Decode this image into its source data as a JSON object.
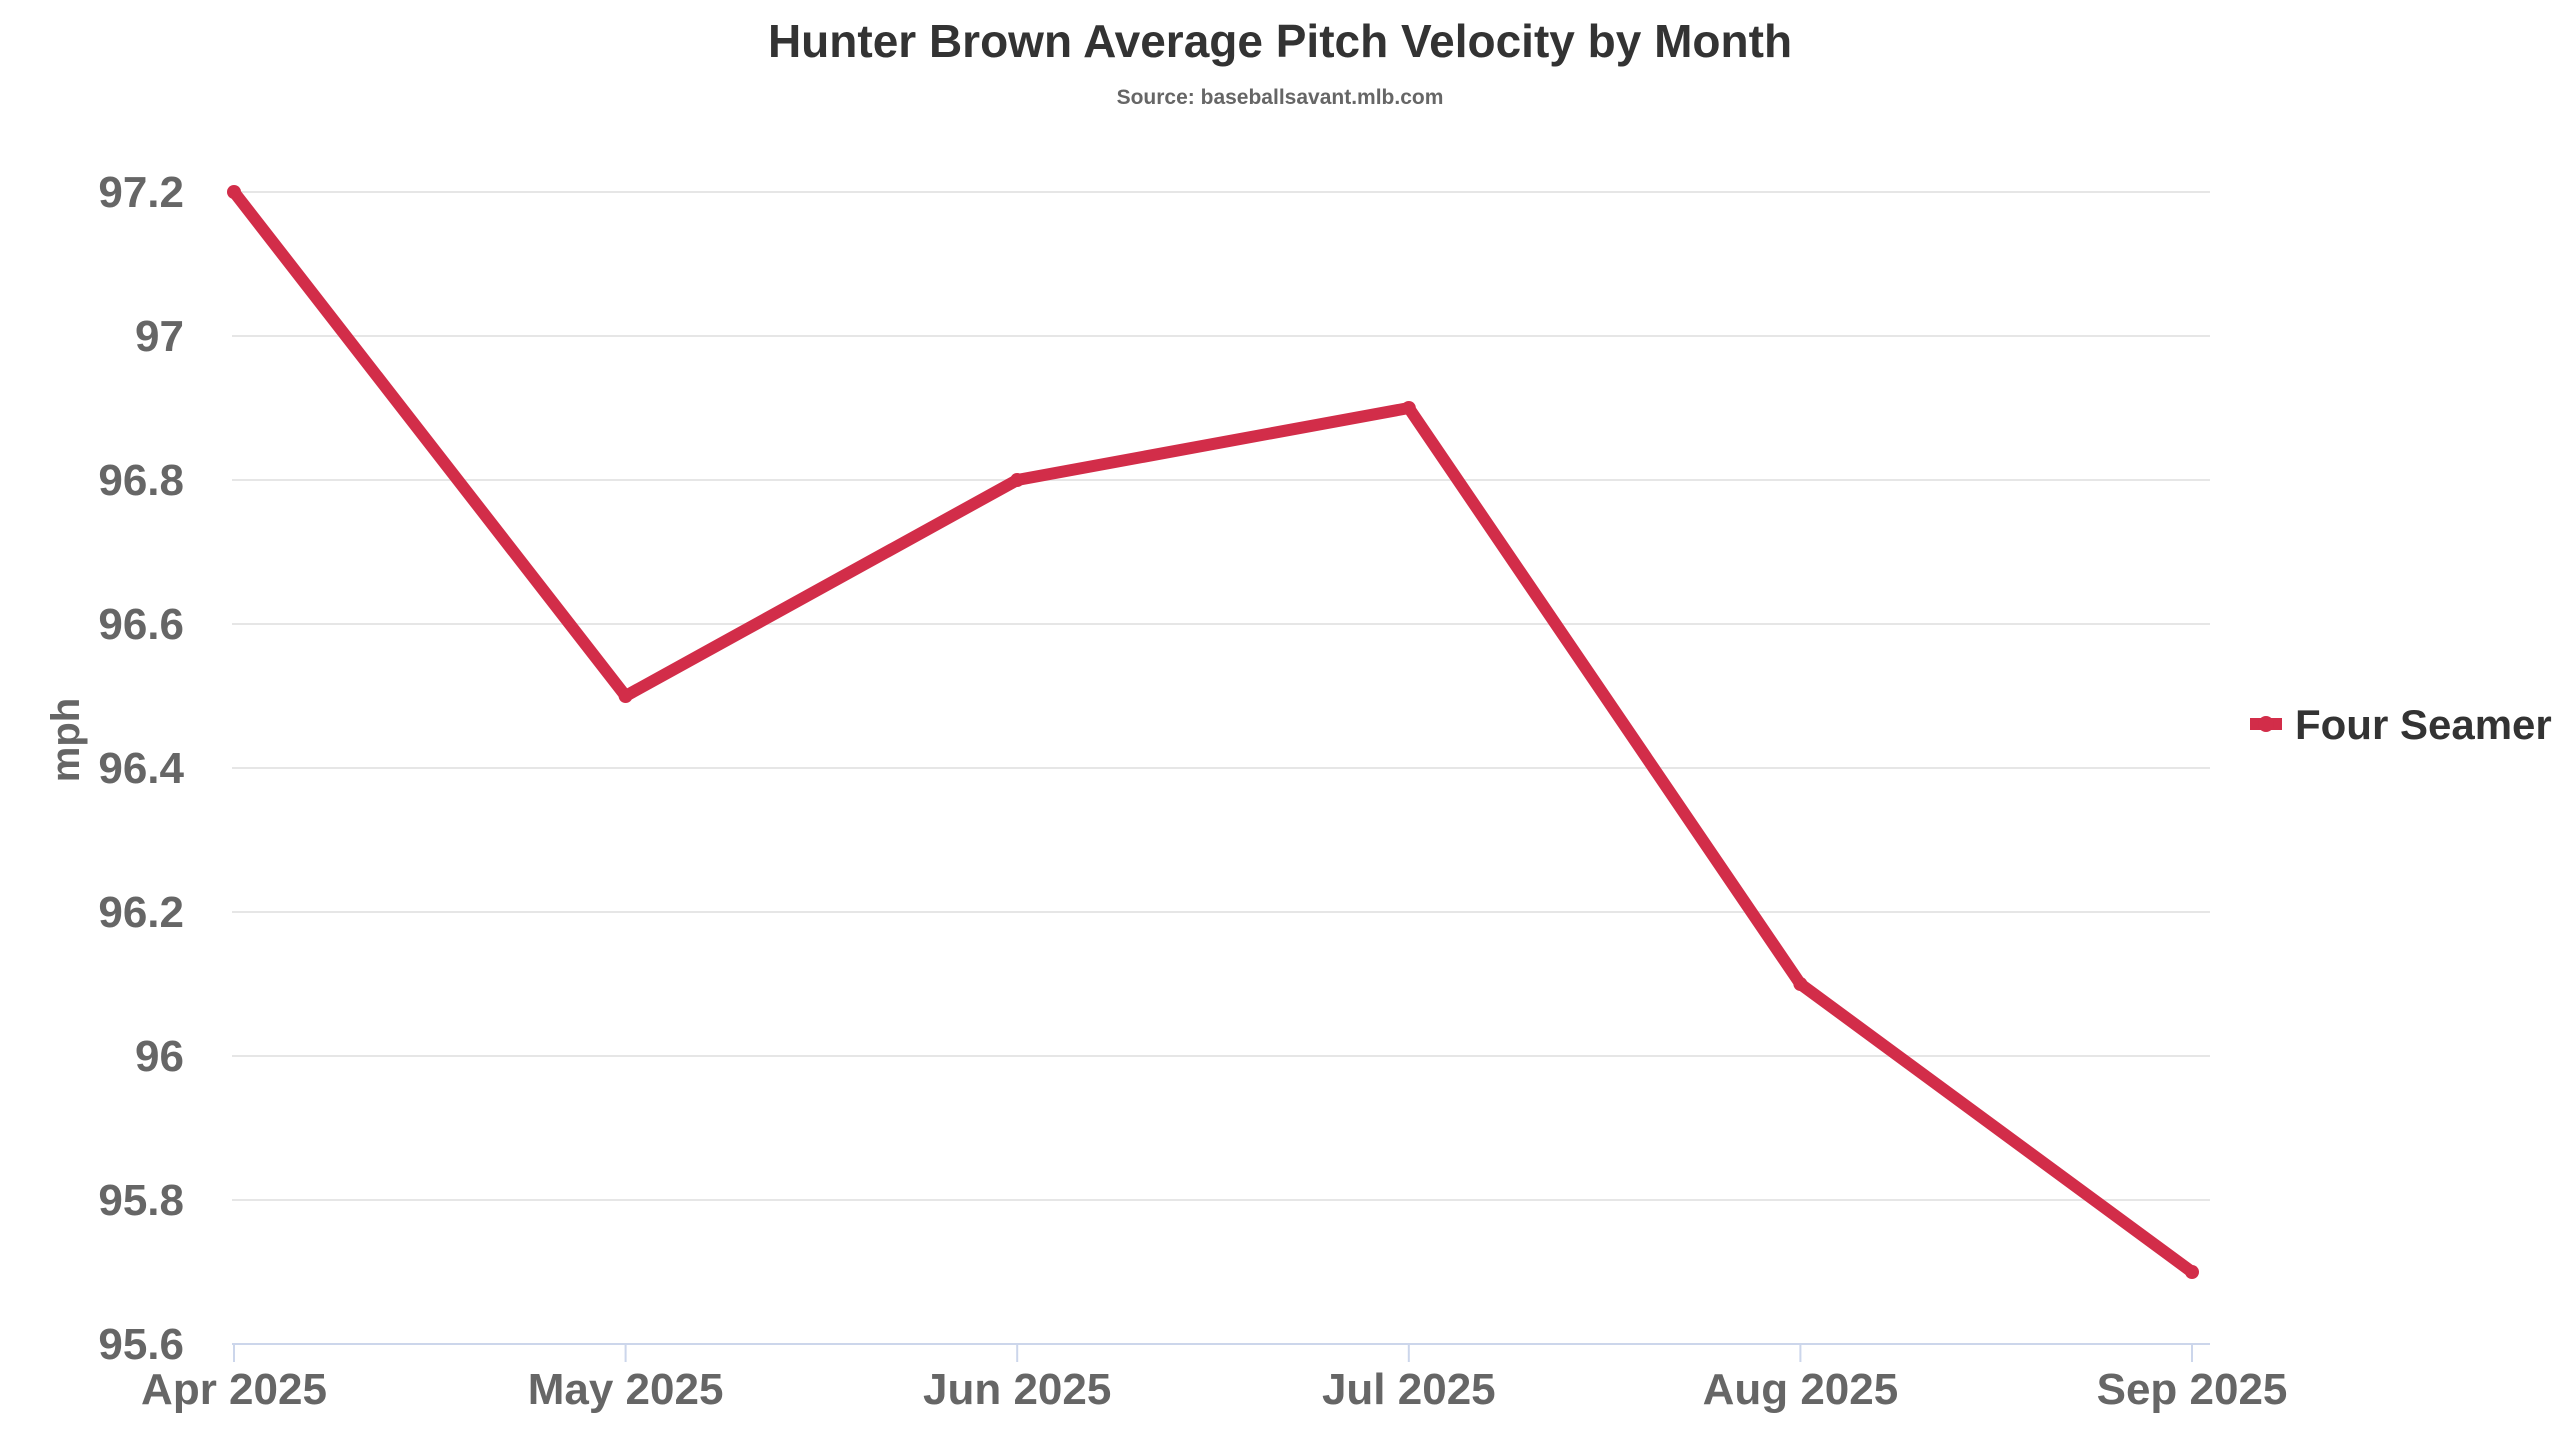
{
  "colors": {
    "series": "#d22d49",
    "grid": "#e6e6e6",
    "axis": "#ccd6eb",
    "title": "#333333",
    "label": "#666666"
  },
  "chart_data": {
    "type": "line",
    "title": "Hunter Brown Average Pitch Velocity by Month",
    "subtitle": "Source: baseballsavant.mlb.com",
    "xlabel": "",
    "ylabel": "mph",
    "categories": [
      "Apr 2025",
      "May 2025",
      "Jun 2025",
      "Jul 2025",
      "Aug 2025",
      "Sep 2025"
    ],
    "yticks": [
      "95.6",
      "95.8",
      "96",
      "96.2",
      "96.4",
      "96.6",
      "96.8",
      "97",
      "97.2"
    ],
    "ylim": [
      95.6,
      97.2
    ],
    "grid": true,
    "legend_position": "right",
    "series": [
      {
        "name": "Four Seamer",
        "color": "#d22d49",
        "values": [
          97.2,
          96.5,
          96.8,
          96.9,
          96.1,
          95.7
        ]
      }
    ]
  }
}
